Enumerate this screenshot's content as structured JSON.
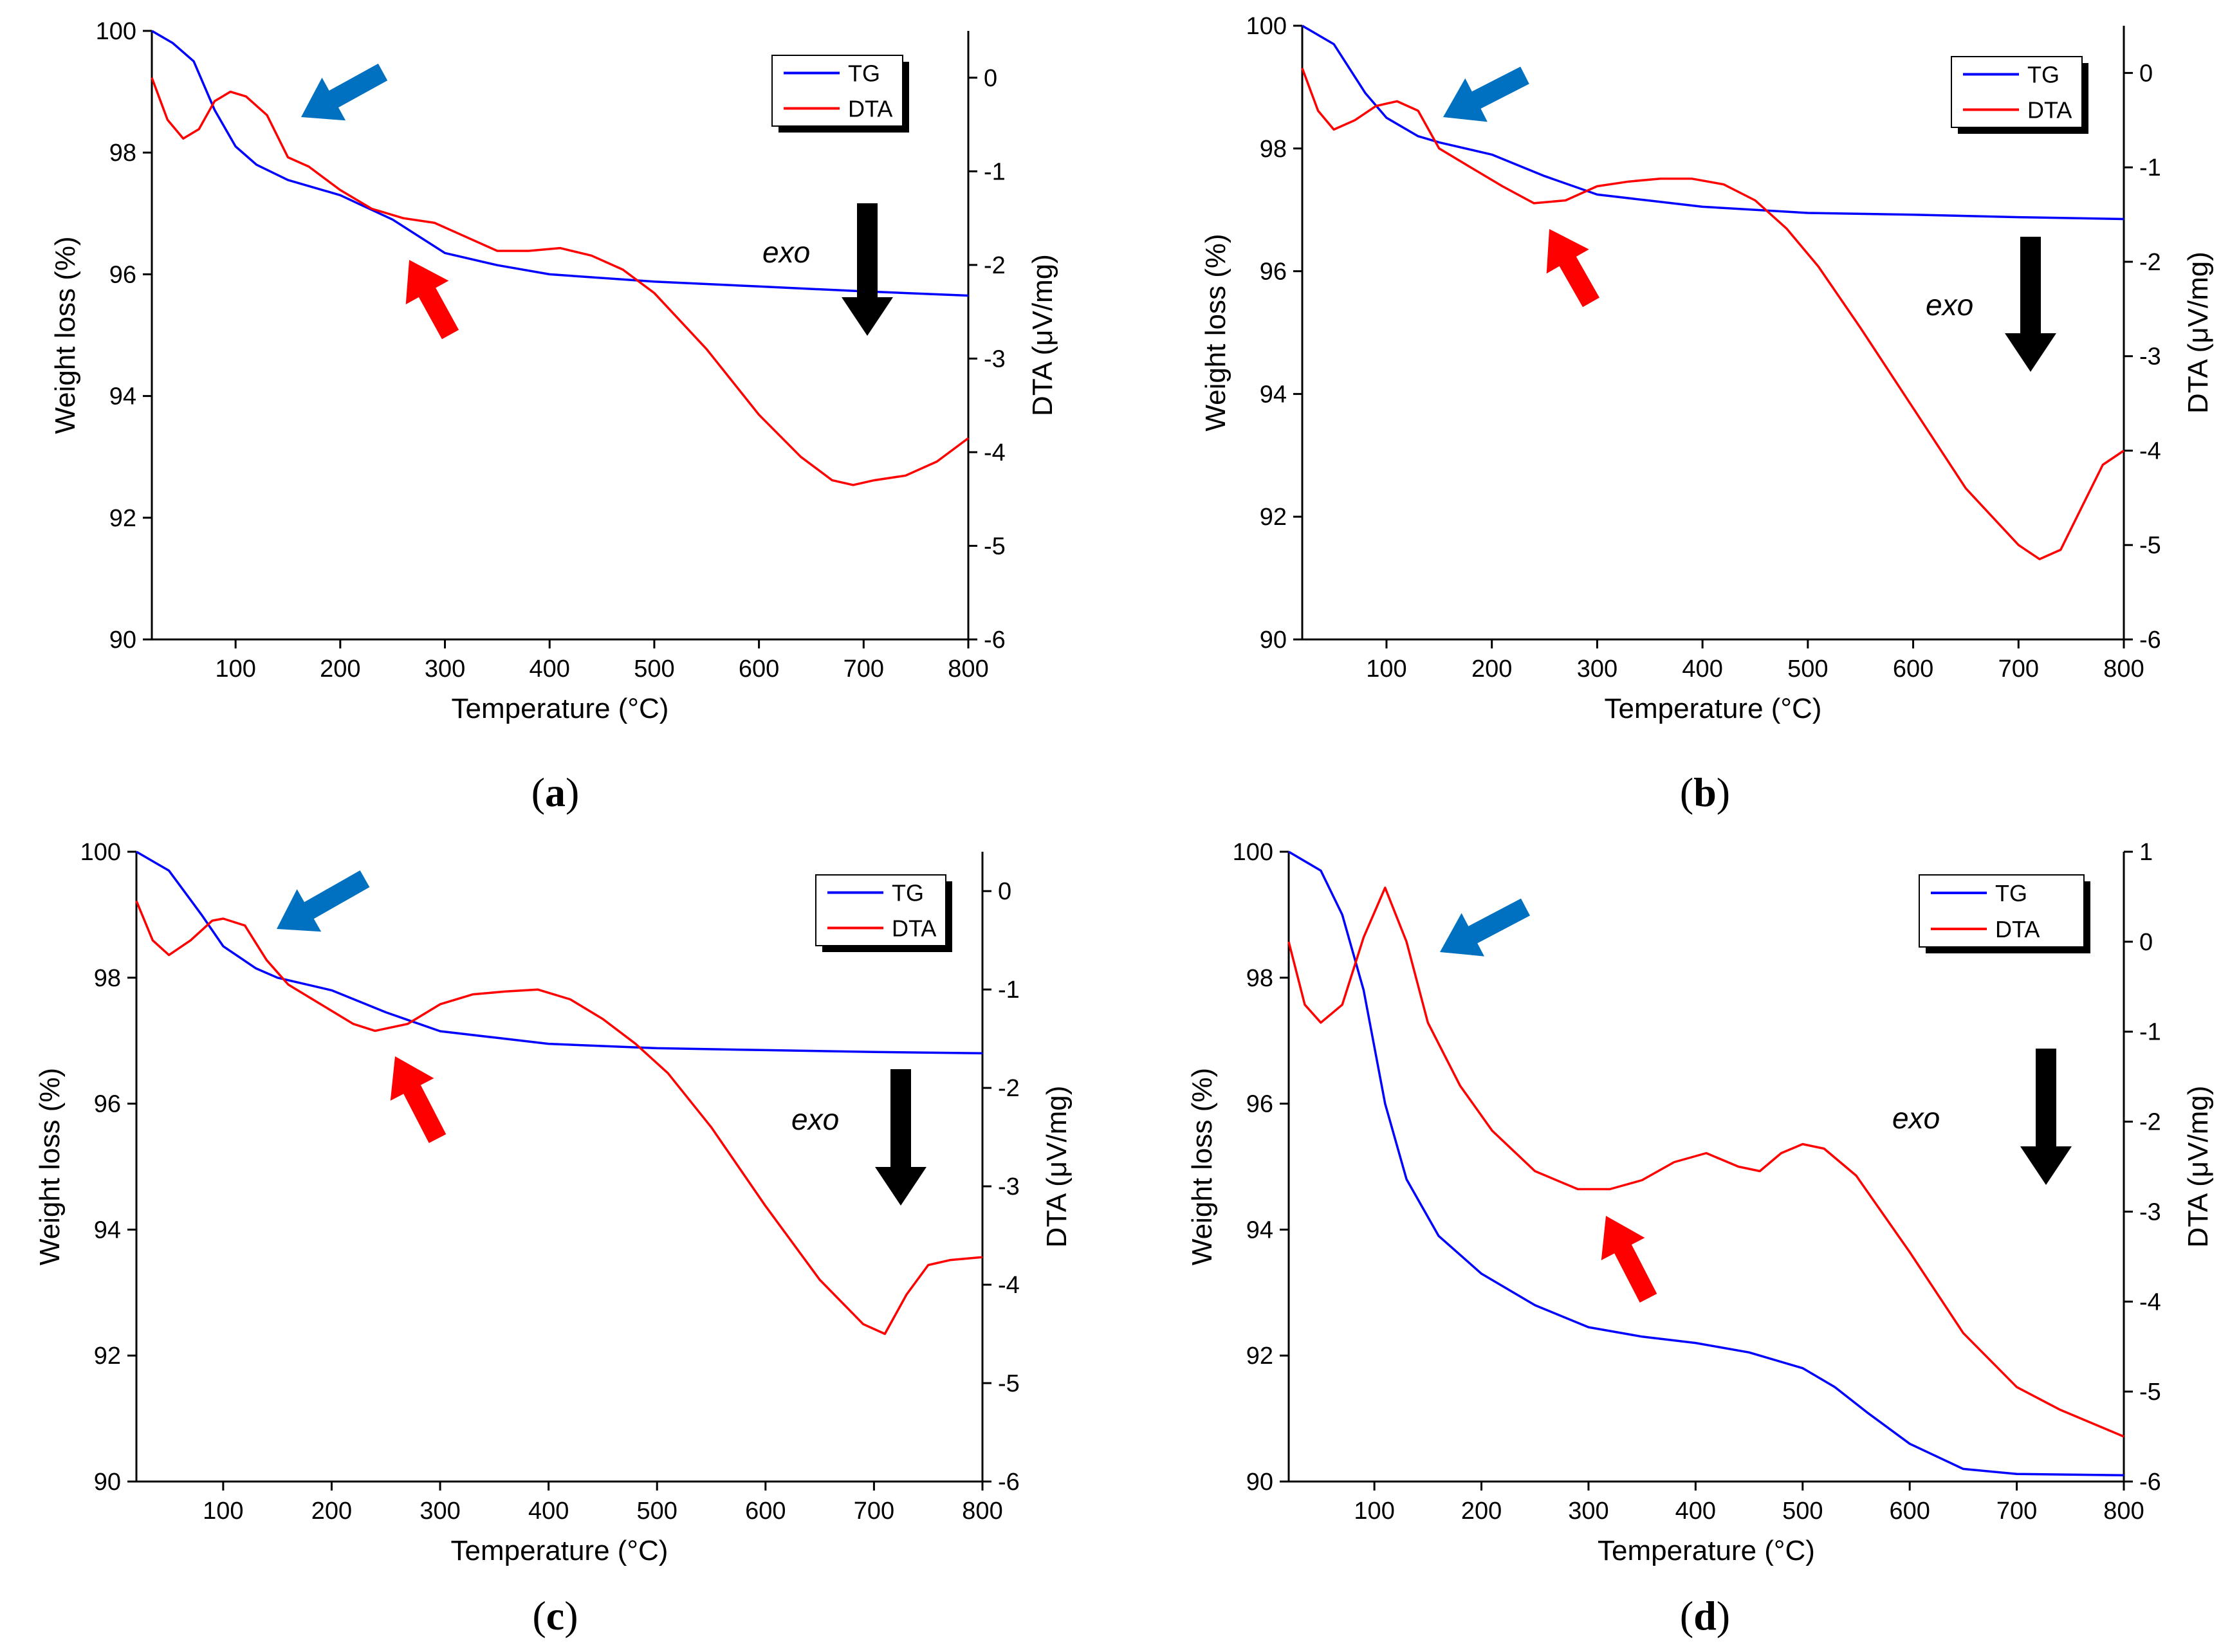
{
  "figure": {
    "panels": [
      {
        "id": "a",
        "caption_open": "(",
        "caption_letter": "a",
        "caption_close": ")"
      },
      {
        "id": "b",
        "caption_open": "(",
        "caption_letter": "b",
        "caption_close": ")"
      },
      {
        "id": "c",
        "caption_open": "(",
        "caption_letter": "c",
        "caption_close": ")"
      },
      {
        "id": "d",
        "caption_open": "(",
        "caption_letter": "d",
        "caption_close": ")"
      }
    ]
  },
  "chart_data": [
    {
      "panel": "a",
      "type": "line",
      "xlabel": "Temperature (°C)",
      "ylabel": "Weight loss (%)",
      "y2label": "DTA (μV/mg)",
      "xlim": [
        20,
        800
      ],
      "ylim": [
        90,
        100
      ],
      "y2lim": [
        -6,
        0.5
      ],
      "xticks": [
        100,
        200,
        300,
        400,
        500,
        600,
        700,
        800
      ],
      "yticks": [
        90,
        92,
        94,
        96,
        98,
        100
      ],
      "y2ticks": [
        -6,
        -5,
        -4,
        -3,
        -2,
        -1,
        0
      ],
      "legend": {
        "position": "top-right",
        "entries": [
          "TG",
          "DTA"
        ]
      },
      "annotation": "exo",
      "colors": {
        "TG": "#0000ff",
        "DTA": "#ff0000",
        "blue_arrow": "#0070c0",
        "red_arrow": "#ff0000",
        "black_arrow": "#000000"
      },
      "series": [
        {
          "name": "TG",
          "axis": "left",
          "x": [
            20,
            40,
            60,
            80,
            100,
            120,
            150,
            200,
            250,
            300,
            350,
            400,
            500,
            600,
            700,
            800
          ],
          "y": [
            100,
            99.8,
            99.5,
            98.7,
            98.1,
            97.8,
            97.55,
            97.3,
            96.9,
            96.35,
            96.15,
            96.0,
            95.88,
            95.8,
            95.72,
            95.65
          ]
        },
        {
          "name": "DTA",
          "axis": "right",
          "x": [
            20,
            35,
            50,
            65,
            80,
            95,
            110,
            130,
            150,
            170,
            200,
            230,
            260,
            290,
            320,
            350,
            380,
            410,
            440,
            470,
            500,
            550,
            600,
            640,
            670,
            690,
            710,
            740,
            770,
            800
          ],
          "y": [
            0.0,
            -0.45,
            -0.65,
            -0.55,
            -0.25,
            -0.15,
            -0.2,
            -0.4,
            -0.85,
            -0.95,
            -1.2,
            -1.4,
            -1.5,
            -1.55,
            -1.7,
            -1.85,
            -1.85,
            -1.82,
            -1.9,
            -2.05,
            -2.3,
            -2.9,
            -3.6,
            -4.05,
            -4.3,
            -4.35,
            -4.3,
            -4.25,
            -4.1,
            -3.85
          ]
        }
      ]
    },
    {
      "panel": "b",
      "type": "line",
      "xlabel": "Temperature (°C)",
      "ylabel": "Weight loss (%)",
      "y2label": "DTA (μV/mg)",
      "xlim": [
        20,
        800
      ],
      "ylim": [
        90,
        100
      ],
      "y2lim": [
        -6,
        0.5
      ],
      "xticks": [
        100,
        200,
        300,
        400,
        500,
        600,
        700,
        800
      ],
      "yticks": [
        90,
        92,
        94,
        96,
        98,
        100
      ],
      "y2ticks": [
        -6,
        -5,
        -4,
        -3,
        -2,
        -1,
        0
      ],
      "legend": {
        "position": "top-right",
        "entries": [
          "TG",
          "DTA"
        ]
      },
      "annotation": "exo",
      "colors": {
        "TG": "#0000ff",
        "DTA": "#ff0000",
        "blue_arrow": "#0070c0",
        "red_arrow": "#ff0000",
        "black_arrow": "#000000"
      },
      "series": [
        {
          "name": "TG",
          "axis": "left",
          "x": [
            20,
            50,
            80,
            100,
            130,
            150,
            200,
            250,
            300,
            350,
            400,
            500,
            600,
            700,
            800
          ],
          "y": [
            100,
            99.7,
            98.9,
            98.5,
            98.2,
            98.1,
            97.9,
            97.55,
            97.25,
            97.15,
            97.05,
            96.95,
            96.92,
            96.88,
            96.85
          ]
        },
        {
          "name": "DTA",
          "axis": "right",
          "x": [
            20,
            35,
            50,
            70,
            90,
            110,
            130,
            150,
            180,
            210,
            240,
            270,
            300,
            330,
            360,
            390,
            420,
            450,
            480,
            510,
            550,
            600,
            650,
            700,
            720,
            740,
            760,
            780,
            800
          ],
          "y": [
            0.05,
            -0.4,
            -0.6,
            -0.5,
            -0.35,
            -0.3,
            -0.4,
            -0.8,
            -1.0,
            -1.2,
            -1.38,
            -1.35,
            -1.2,
            -1.15,
            -1.12,
            -1.12,
            -1.18,
            -1.35,
            -1.65,
            -2.05,
            -2.7,
            -3.55,
            -4.4,
            -5.0,
            -5.15,
            -5.05,
            -4.6,
            -4.15,
            -4.0
          ]
        }
      ]
    },
    {
      "panel": "c",
      "type": "line",
      "xlabel": "Temperature (°C)",
      "ylabel": "Weight loss (%)",
      "y2label": "DTA (μV/mg)",
      "xlim": [
        20,
        800
      ],
      "ylim": [
        90,
        100
      ],
      "y2lim": [
        -6,
        0.4
      ],
      "xticks": [
        100,
        200,
        300,
        400,
        500,
        600,
        700,
        800
      ],
      "yticks": [
        90,
        92,
        94,
        96,
        98,
        100
      ],
      "y2ticks": [
        -6,
        -5,
        -4,
        -3,
        -2,
        -1,
        0
      ],
      "legend": {
        "position": "top-right",
        "entries": [
          "TG",
          "DTA"
        ]
      },
      "annotation": "exo",
      "colors": {
        "TG": "#0000ff",
        "DTA": "#ff0000",
        "blue_arrow": "#0070c0",
        "red_arrow": "#ff0000",
        "black_arrow": "#000000"
      },
      "series": [
        {
          "name": "TG",
          "axis": "left",
          "x": [
            20,
            50,
            80,
            100,
            130,
            150,
            200,
            250,
            300,
            350,
            400,
            500,
            600,
            700,
            800
          ],
          "y": [
            100,
            99.7,
            99.0,
            98.5,
            98.15,
            98.0,
            97.8,
            97.45,
            97.15,
            97.05,
            96.95,
            96.88,
            96.85,
            96.82,
            96.8
          ]
        },
        {
          "name": "DTA",
          "axis": "right",
          "x": [
            20,
            35,
            50,
            70,
            90,
            100,
            120,
            140,
            160,
            190,
            220,
            240,
            270,
            300,
            330,
            360,
            390,
            420,
            450,
            480,
            510,
            550,
            600,
            650,
            690,
            710,
            730,
            750,
            770,
            800
          ],
          "y": [
            -0.1,
            -0.5,
            -0.65,
            -0.5,
            -0.3,
            -0.28,
            -0.35,
            -0.7,
            -0.95,
            -1.15,
            -1.35,
            -1.42,
            -1.35,
            -1.15,
            -1.05,
            -1.02,
            -1.0,
            -1.1,
            -1.3,
            -1.55,
            -1.85,
            -2.4,
            -3.2,
            -3.95,
            -4.4,
            -4.5,
            -4.1,
            -3.8,
            -3.75,
            -3.72
          ]
        }
      ]
    },
    {
      "panel": "d",
      "type": "line",
      "xlabel": "Temperature (°C)",
      "ylabel": "Weight loss (%)",
      "y2label": "DTA (μV/mg)",
      "xlim": [
        20,
        800
      ],
      "ylim": [
        90,
        100
      ],
      "y2lim": [
        -6,
        1
      ],
      "xticks": [
        100,
        200,
        300,
        400,
        500,
        600,
        700,
        800
      ],
      "yticks": [
        90,
        92,
        94,
        96,
        98,
        100
      ],
      "y2ticks": [
        -6,
        -5,
        -4,
        -3,
        -2,
        -1,
        0,
        1
      ],
      "legend": {
        "position": "top-right",
        "entries": [
          "TG",
          "DTA"
        ]
      },
      "annotation": "exo",
      "colors": {
        "TG": "#0000ff",
        "DTA": "#ff0000",
        "blue_arrow": "#0070c0",
        "red_arrow": "#ff0000",
        "black_arrow": "#000000"
      },
      "series": [
        {
          "name": "TG",
          "axis": "left",
          "x": [
            20,
            50,
            70,
            90,
            110,
            130,
            160,
            200,
            250,
            300,
            350,
            400,
            450,
            500,
            530,
            560,
            600,
            650,
            700,
            800
          ],
          "y": [
            100,
            99.7,
            99.0,
            97.8,
            96.0,
            94.8,
            93.9,
            93.3,
            92.8,
            92.45,
            92.3,
            92.2,
            92.05,
            91.8,
            91.5,
            91.1,
            90.6,
            90.2,
            90.12,
            90.1
          ]
        },
        {
          "name": "DTA",
          "axis": "right",
          "x": [
            20,
            35,
            50,
            70,
            90,
            110,
            130,
            150,
            180,
            210,
            250,
            290,
            320,
            350,
            380,
            410,
            440,
            460,
            480,
            500,
            520,
            550,
            600,
            650,
            700,
            740,
            800
          ],
          "y": [
            0.0,
            -0.7,
            -0.9,
            -0.7,
            0.05,
            0.6,
            0.0,
            -0.9,
            -1.6,
            -2.1,
            -2.55,
            -2.75,
            -2.75,
            -2.65,
            -2.45,
            -2.35,
            -2.5,
            -2.55,
            -2.35,
            -2.25,
            -2.3,
            -2.6,
            -3.45,
            -4.35,
            -4.95,
            -5.2,
            -5.5
          ]
        }
      ]
    }
  ]
}
